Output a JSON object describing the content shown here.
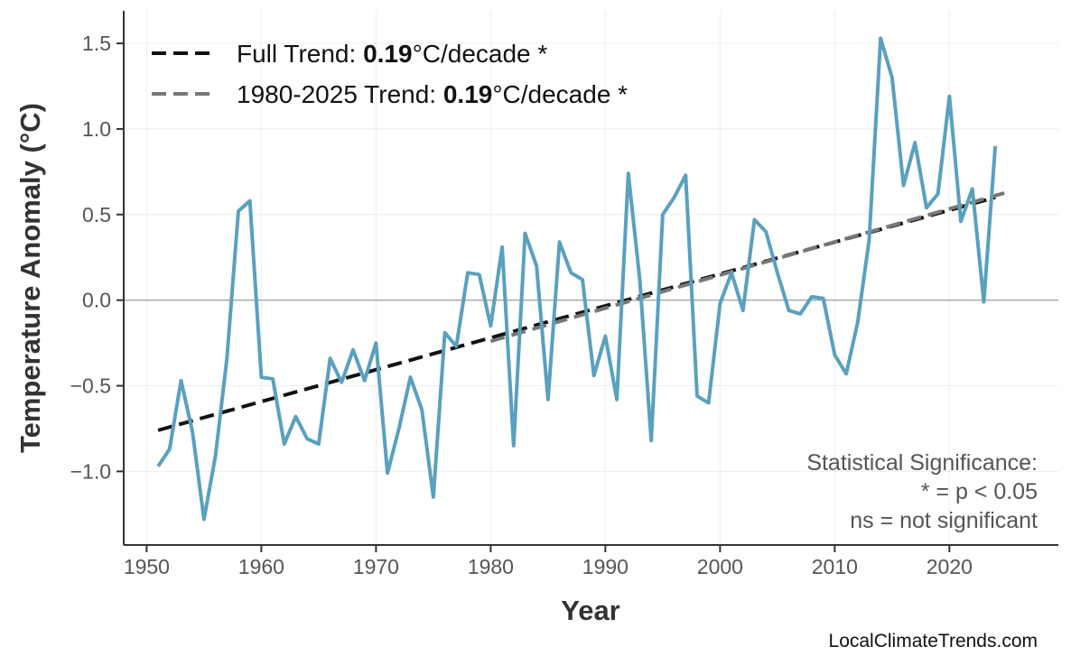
{
  "chart_data": {
    "type": "line",
    "xlabel": "Year",
    "ylabel": "Temperature Anomaly (°C)",
    "xlim": [
      1948,
      2029.5
    ],
    "ylim": [
      -1.43,
      1.69
    ],
    "grid": true,
    "x_ticks": [
      "1950",
      "1960",
      "1970",
      "1980",
      "1990",
      "2000",
      "2010",
      "2020"
    ],
    "y_ticks": [
      "1.5",
      "1.0",
      "0.5",
      "0.0",
      "−0.5",
      "−1.0"
    ],
    "y_tick_values": [
      1.5,
      1.0,
      0.5,
      0.0,
      -0.5,
      -1.0
    ],
    "x_tick_values": [
      1950,
      1960,
      1970,
      1980,
      1990,
      2000,
      2010,
      2020
    ],
    "series": [
      {
        "color": "#5aa0bf",
        "x": [
          1951,
          1952,
          1953,
          1954,
          1955,
          1956,
          1957,
          1958,
          1959,
          1960,
          1961,
          1962,
          1963,
          1964,
          1965,
          1966,
          1967,
          1968,
          1969,
          1970,
          1971,
          1972,
          1973,
          1974,
          1975,
          1976,
          1977,
          1978,
          1979,
          1980,
          1981,
          1982,
          1983,
          1984,
          1985,
          1986,
          1987,
          1988,
          1989,
          1990,
          1991,
          1992,
          1993,
          1994,
          1995,
          1996,
          1997,
          1998,
          1999,
          2000,
          2001,
          2002,
          2003,
          2004,
          2005,
          2006,
          2007,
          2008,
          2009,
          2010,
          2011,
          2012,
          2013,
          2014,
          2015,
          2016,
          2017,
          2018,
          2019,
          2020,
          2021,
          2022,
          2023,
          2024
        ],
        "values": [
          -0.97,
          -0.87,
          -0.47,
          -0.77,
          -1.28,
          -0.91,
          -0.34,
          0.52,
          0.58,
          -0.45,
          -0.46,
          -0.84,
          -0.68,
          -0.81,
          -0.84,
          -0.34,
          -0.48,
          -0.29,
          -0.47,
          -0.25,
          -1.01,
          -0.75,
          -0.45,
          -0.64,
          -1.15,
          -0.19,
          -0.27,
          0.16,
          0.15,
          -0.15,
          0.31,
          -0.85,
          0.39,
          0.2,
          -0.58,
          0.34,
          0.16,
          0.12,
          -0.44,
          -0.21,
          -0.58,
          0.74,
          0.12,
          -0.82,
          0.5,
          0.6,
          0.73,
          -0.56,
          -0.6,
          -0.02,
          0.16,
          -0.06,
          0.47,
          0.4,
          0.16,
          -0.06,
          -0.08,
          0.02,
          0.01,
          -0.32,
          -0.43,
          -0.13,
          0.35,
          1.53,
          1.3,
          0.67,
          0.92,
          0.54,
          0.62,
          1.19,
          0.46,
          0.65,
          -0.01,
          0.9
        ]
      }
    ],
    "trends": [
      {
        "name": "Full Trend",
        "prefix": "Full Trend: ",
        "value": "0.19",
        "suffix": "°C/decade *",
        "color": "#111111",
        "x": [
          1951,
          2024
        ],
        "y": [
          -0.76,
          0.6
        ]
      },
      {
        "name": "1980-2025 Trend",
        "prefix": "1980-2025 Trend: ",
        "value": "0.19",
        "suffix": "°C/decade *",
        "color": "#777777",
        "x": [
          1980,
          2025
        ],
        "y": [
          -0.24,
          0.63
        ]
      }
    ],
    "annotation": [
      "Statistical Significance:",
      "* = p < 0.05",
      "ns = not significant"
    ],
    "source": "LocalClimateTrends.com"
  }
}
